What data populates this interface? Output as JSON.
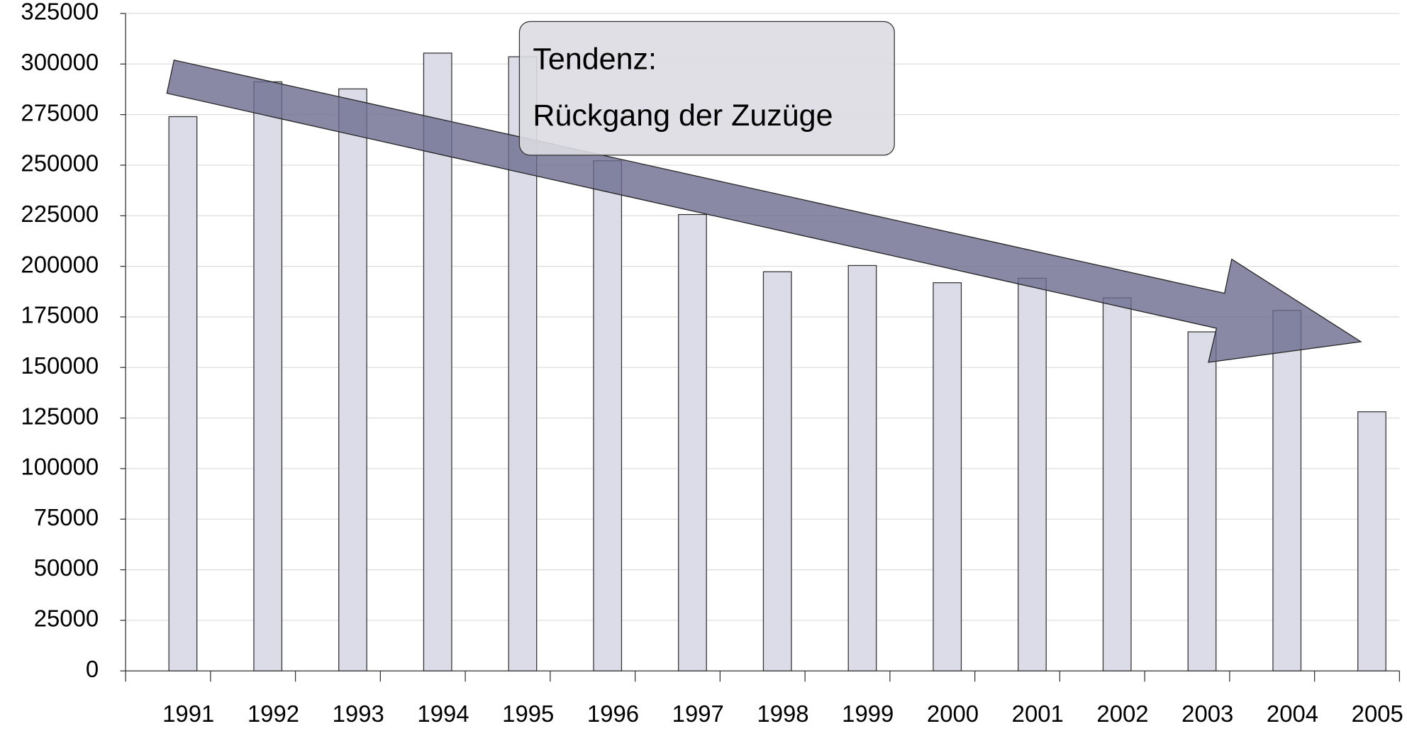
{
  "chart_data": {
    "type": "bar",
    "categories": [
      "1991",
      "1992",
      "1993",
      "1994",
      "1995",
      "1996",
      "1997",
      "1998",
      "1999",
      "2000",
      "2001",
      "2002",
      "2003",
      "2004",
      "2005"
    ],
    "values": [
      274000,
      291200,
      287700,
      305400,
      303600,
      252200,
      225600,
      197300,
      200400,
      191900,
      194100,
      184400,
      167600,
      178200,
      128100
    ],
    "color": "#dcdce8",
    "ylim": [
      0,
      325000
    ],
    "yticks": [
      0,
      25000,
      50000,
      75000,
      100000,
      125000,
      150000,
      175000,
      200000,
      225000,
      250000,
      275000,
      300000,
      325000
    ],
    "grid": true,
    "annotation": [
      "Tendenz:",
      "Rückgang der Zuzüge"
    ]
  }
}
